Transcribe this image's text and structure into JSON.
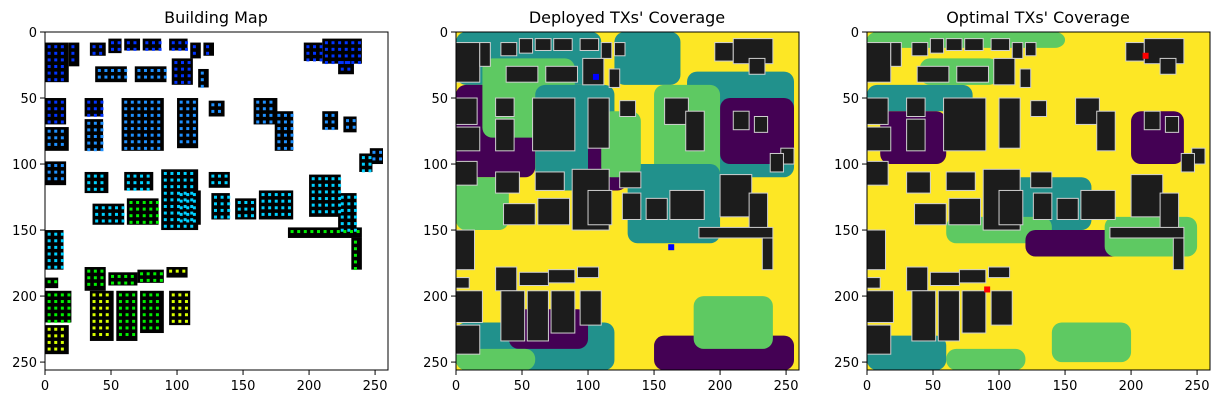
{
  "figure": {
    "panels": [
      {
        "id": "building",
        "title": "Building Map"
      },
      {
        "id": "deployed",
        "title": "Deployed TXs' Coverage"
      },
      {
        "id": "optimal",
        "title": "Optimal TXs' Coverage"
      }
    ]
  },
  "chart_data": [
    {
      "type": "heatmap",
      "title": "Building Map",
      "xlabel": "",
      "ylabel": "",
      "xlim": [
        0,
        256
      ],
      "ylim": [
        256,
        0
      ],
      "xticks": [
        0,
        50,
        100,
        150,
        200,
        250
      ],
      "yticks": [
        0,
        50,
        100,
        150,
        200,
        250
      ],
      "colors": {
        "background": "#ffffff",
        "building": "#000000",
        "dot_levels": [
          "#0033ff",
          "#1e90ff",
          "#00d0ff",
          "#00ee00",
          "#d8ff00"
        ]
      }
    },
    {
      "type": "heatmap",
      "title": "Deployed TXs' Coverage",
      "xlabel": "",
      "ylabel": "",
      "xlim": [
        0,
        256
      ],
      "ylim": [
        256,
        0
      ],
      "xticks": [
        0,
        50,
        100,
        150,
        200,
        250
      ],
      "yticks": [
        0,
        50,
        100,
        150,
        200,
        250
      ],
      "colormap": [
        "#440154",
        "#21918c",
        "#5ec962",
        "#fde725"
      ],
      "transmitters": [
        {
          "x": 106,
          "y": 34,
          "color": "#0000ff"
        },
        {
          "x": 163,
          "y": 163,
          "color": "#0000ff"
        }
      ]
    },
    {
      "type": "heatmap",
      "title": "Optimal TXs' Coverage",
      "xlabel": "",
      "ylabel": "",
      "xlim": [
        0,
        256
      ],
      "ylim": [
        256,
        0
      ],
      "xticks": [
        0,
        50,
        100,
        150,
        200,
        250
      ],
      "yticks": [
        0,
        50,
        100,
        150,
        200,
        250
      ],
      "colormap": [
        "#440154",
        "#21918c",
        "#5ec962",
        "#fde725"
      ],
      "transmitters": [
        {
          "x": 211,
          "y": 18,
          "color": "#ff0000"
        },
        {
          "x": 91,
          "y": 195,
          "color": "#ff0000"
        }
      ]
    }
  ]
}
